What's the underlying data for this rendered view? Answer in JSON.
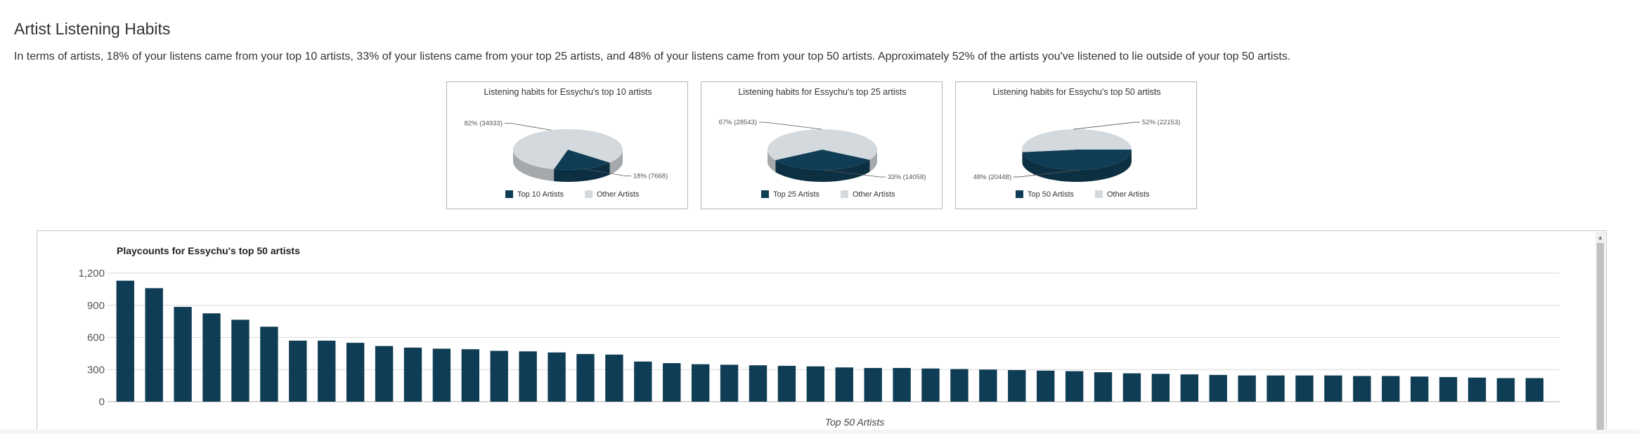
{
  "page": {
    "title": "Artist Listening Habits",
    "summary": "In terms of artists, 18% of your listens came from your top 10 artists, 33% of your listens came from your top 25 artists, and 48% of your listens came from your top 50 artists. Approximately 52% of the artists you've listened to lie outside of your top 50 artists."
  },
  "colors": {
    "primary": "#0f3d55",
    "other": "#d3d9dd",
    "grid": "#d9d9d9",
    "text": "#333333"
  },
  "chart_data": [
    {
      "type": "pie",
      "title": "Listening habits for Essychu's top 10 artists",
      "slices": [
        {
          "name": "Top 10 Artists",
          "value": 7668,
          "percent": 18,
          "label": "18%  (7668)"
        },
        {
          "name": "Other Artists",
          "value": 34933,
          "percent": 82,
          "label": "82%  (34933)"
        }
      ],
      "legend": [
        "Top 10 Artists",
        "Other Artists"
      ]
    },
    {
      "type": "pie",
      "title": "Listening habits for Essychu's top 25 artists",
      "slices": [
        {
          "name": "Top 25 Artists",
          "value": 14058,
          "percent": 33,
          "label": "33%  (14058)"
        },
        {
          "name": "Other Artists",
          "value": 28543,
          "percent": 67,
          "label": "67%  (28543)"
        }
      ],
      "legend": [
        "Top 25 Artists",
        "Other Artists"
      ]
    },
    {
      "type": "pie",
      "title": "Listening habits for Essychu's top 50 artists",
      "slices": [
        {
          "name": "Top 50 Artists",
          "value": 20448,
          "percent": 48,
          "label": "48%  (20448)"
        },
        {
          "name": "Other Artists",
          "value": 22153,
          "percent": 52,
          "label": "52%  (22153)"
        }
      ],
      "legend": [
        "Top 50 Artists",
        "Other Artists"
      ]
    },
    {
      "type": "bar",
      "title": "Playcounts for Essychu's top 50 artists",
      "xlabel": "Top 50 Artists",
      "ylabel": "",
      "ylim": [
        0,
        1200
      ],
      "yticks": [
        0,
        300,
        600,
        900,
        1200
      ],
      "ytick_labels": [
        "0",
        "300",
        "600",
        "900",
        "1,200"
      ],
      "grid": true,
      "values": [
        1130,
        1060,
        885,
        825,
        765,
        700,
        570,
        570,
        550,
        520,
        505,
        495,
        490,
        475,
        470,
        460,
        445,
        440,
        375,
        360,
        350,
        345,
        340,
        335,
        330,
        320,
        315,
        315,
        310,
        305,
        300,
        295,
        290,
        285,
        275,
        265,
        260,
        255,
        250,
        245,
        245,
        245,
        245,
        240,
        240,
        235,
        230,
        225,
        220,
        220
      ]
    }
  ]
}
